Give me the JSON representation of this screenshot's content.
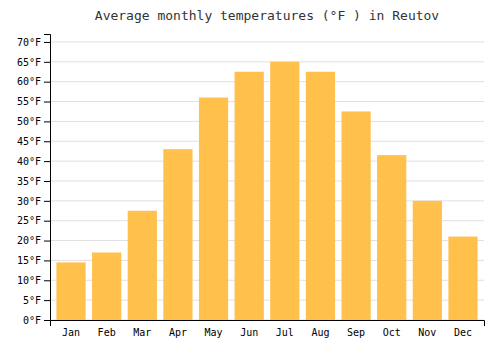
{
  "chart_data": {
    "type": "bar",
    "title": "Average monthly temperatures (°F ) in Reutov",
    "categories": [
      "Jan",
      "Feb",
      "Mar",
      "Apr",
      "May",
      "Jun",
      "Jul",
      "Aug",
      "Sep",
      "Oct",
      "Nov",
      "Dec"
    ],
    "values": [
      14.5,
      17.0,
      27.5,
      43.0,
      56.0,
      62.5,
      65.0,
      62.5,
      52.5,
      41.5,
      30.0,
      21.0
    ],
    "color": "#FFC04C",
    "ylim": [
      0,
      72
    ],
    "yticks": [
      {
        "value": 0,
        "label": "0°F"
      },
      {
        "value": 5,
        "label": "5°F"
      },
      {
        "value": 10,
        "label": "10°F"
      },
      {
        "value": 15,
        "label": "15°F"
      },
      {
        "value": 20,
        "label": "20°F"
      },
      {
        "value": 25,
        "label": "25°F"
      },
      {
        "value": 30,
        "label": "30°F"
      },
      {
        "value": 35,
        "label": "35°F"
      },
      {
        "value": 40,
        "label": "40°F"
      },
      {
        "value": 45,
        "label": "45°F"
      },
      {
        "value": 50,
        "label": "50°F"
      },
      {
        "value": 55,
        "label": "55°F"
      },
      {
        "value": 60,
        "label": "60°F"
      },
      {
        "value": 65,
        "label": "65°F"
      },
      {
        "value": 70,
        "label": "70°F"
      }
    ],
    "grid": true
  }
}
